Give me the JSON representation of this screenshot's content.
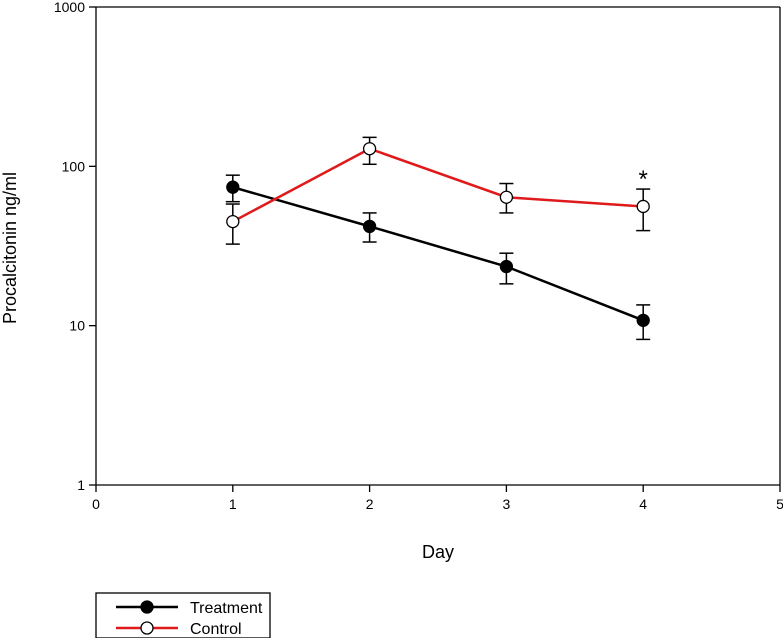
{
  "chart_data": {
    "type": "line",
    "xlabel": "Day",
    "ylabel": "Procalcitonin ng/ml",
    "xlim": [
      0,
      5
    ],
    "ylim": [
      1,
      1000
    ],
    "yscale": "log",
    "grid": false,
    "legend_position": "bottom-left",
    "x_ticks": [
      "0",
      "1",
      "2",
      "3",
      "4",
      "5"
    ],
    "y_ticks": [
      "1",
      "10",
      "100",
      "1000"
    ],
    "annotations": [
      {
        "text": "*",
        "x": 4
      }
    ],
    "series": [
      {
        "name": "Treatment",
        "color": "#000000",
        "marker": "filled-circle",
        "x": [
          1,
          2,
          3,
          4
        ],
        "y": [
          74,
          42,
          23.5,
          10.8
        ],
        "err_low": [
          60,
          33.5,
          18.3,
          8.2
        ],
        "err_high": [
          88,
          51,
          28.5,
          13.5
        ]
      },
      {
        "name": "Control",
        "color": "#e0191b",
        "marker": "open-circle",
        "x": [
          1,
          2,
          3,
          4
        ],
        "y": [
          45,
          129,
          64,
          56
        ],
        "err_low": [
          32.5,
          103,
          51,
          39.5
        ],
        "err_high": [
          58,
          152,
          78,
          72
        ]
      }
    ]
  }
}
